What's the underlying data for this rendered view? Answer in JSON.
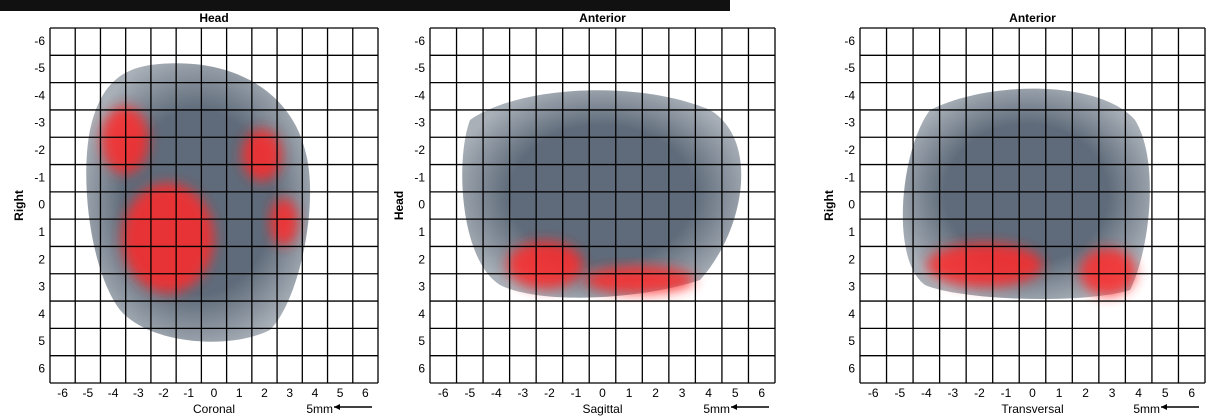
{
  "panels": [
    {
      "top": "Head",
      "left": "Right",
      "bottom": "Coronal",
      "scale": "5mm",
      "xticks": [
        -6,
        -5,
        -4,
        -3,
        -2,
        -1,
        0,
        1,
        2,
        3,
        4,
        5,
        6
      ],
      "yticks": [
        -6,
        -5,
        -4,
        -3,
        -2,
        -1,
        0,
        1,
        2,
        3,
        4,
        5,
        6
      ]
    },
    {
      "top": "Anterior",
      "left": "Head",
      "bottom": "Sagittal",
      "scale": "5mm",
      "xticks": [
        -6,
        -5,
        -4,
        -3,
        -2,
        -1,
        0,
        1,
        2,
        3,
        4,
        5,
        6
      ],
      "yticks": [
        -6,
        -5,
        -4,
        -3,
        -2,
        -1,
        0,
        1,
        2,
        3,
        4,
        5,
        6
      ]
    },
    {
      "top": "Anterior",
      "left": "Right",
      "bottom": "Transversal",
      "scale": "5mm",
      "xticks": [
        -6,
        -5,
        -4,
        -3,
        -2,
        -1,
        0,
        1,
        2,
        3,
        4,
        5,
        6
      ],
      "yticks": [
        -6,
        -5,
        -4,
        -3,
        -2,
        -1,
        0,
        1,
        2,
        3,
        4,
        5,
        6
      ]
    }
  ]
}
